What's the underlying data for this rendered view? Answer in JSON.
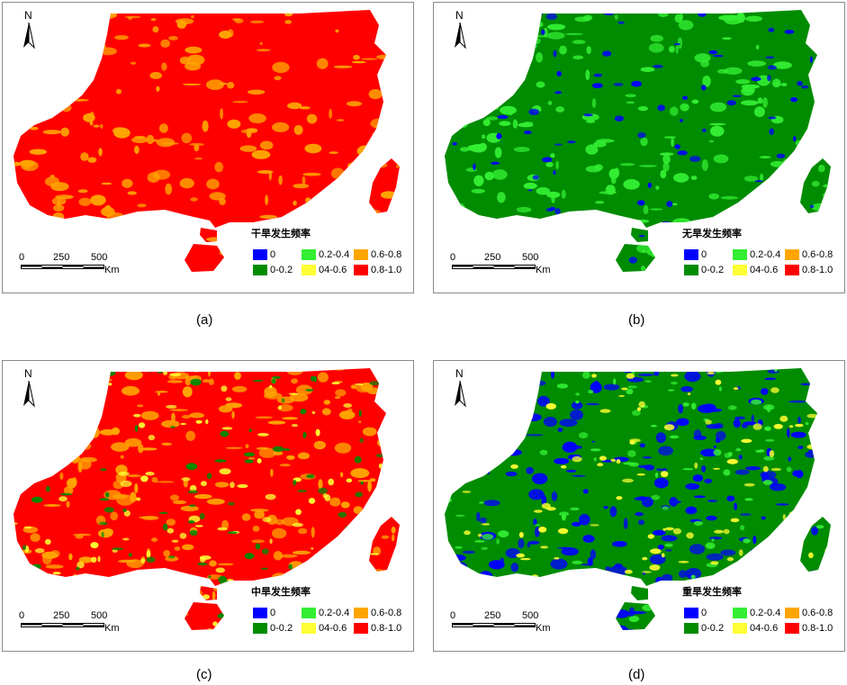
{
  "colors": {
    "blue": "#0000ff",
    "dark_green": "#008c00",
    "light_green": "#33ee33",
    "yellow": "#ffff33",
    "orange": "#ffa500",
    "red": "#ff0000"
  },
  "north_label": "N",
  "scale_bar": {
    "ticks": [
      "0",
      "250",
      "500"
    ],
    "unit": "Km"
  },
  "legend_items": [
    {
      "label": "0",
      "color_key": "blue"
    },
    {
      "label": "0-0.2",
      "color_key": "dark_green"
    },
    {
      "label": "0.2-0.4",
      "color_key": "light_green"
    },
    {
      "label": "04-0.6",
      "color_key": "yellow"
    },
    {
      "label": "0.6-0.8",
      "color_key": "orange"
    },
    {
      "label": "0.8-1.0",
      "color_key": "red"
    }
  ],
  "panels": [
    {
      "id": "a",
      "legend_title": "干旱发生频率",
      "caption": "(a)",
      "dominant_class": "0.8-1.0",
      "secondary_classes": [
        "0.6-0.8"
      ]
    },
    {
      "id": "b",
      "legend_title": "无旱发生频率",
      "caption": "(b)",
      "dominant_class": "0-0.2",
      "secondary_classes": [
        "0.2-0.4",
        "0"
      ]
    },
    {
      "id": "c",
      "legend_title": "中旱发生频率",
      "caption": "(c)",
      "dominant_class": "0.8-1.0",
      "secondary_classes": [
        "0.6-0.8",
        "04-0.6",
        "0-0.2"
      ]
    },
    {
      "id": "d",
      "legend_title": "重旱发生频率",
      "caption": "(d)",
      "dominant_class": "0-0.2",
      "secondary_classes": [
        "0",
        "0.2-0.4",
        "04-0.6"
      ]
    }
  ]
}
